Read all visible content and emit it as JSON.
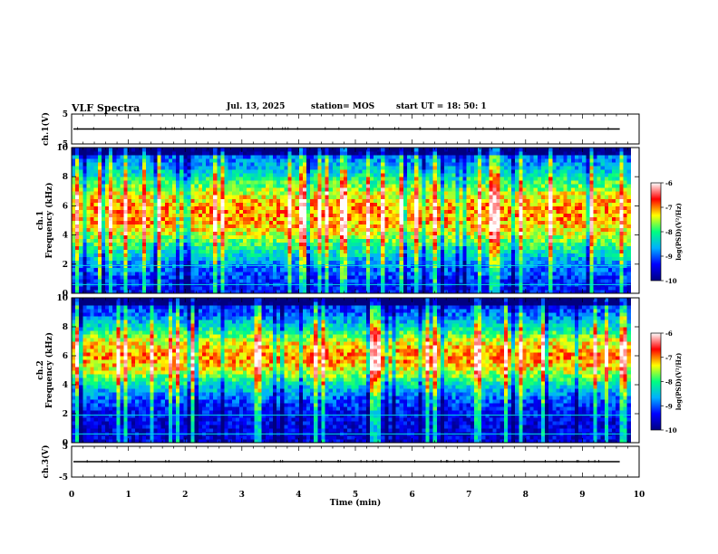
{
  "header": {
    "title": "VLF Spectra",
    "date": "Jul. 13, 2025",
    "station": "station= MOS",
    "start_ut": "start UT =  18: 50: 1"
  },
  "chart_data": {
    "type": "heatmap",
    "title": "VLF Spectra",
    "xlabel": "Time (min)",
    "x_ticks": [
      "0",
      "1",
      "2",
      "3",
      "4",
      "5",
      "6",
      "7",
      "8",
      "9",
      "10"
    ],
    "xlim": [
      0,
      10
    ],
    "data_end_min": 9.85,
    "panels": [
      {
        "name": "ch1-waveform",
        "ylabel": "ch.1(V)",
        "ylim": [
          -5,
          5
        ],
        "y_ticks": [
          "5",
          "-5"
        ],
        "level": 0
      },
      {
        "name": "ch1-spectrogram",
        "ylabel_top": "ch.1",
        "ylabel": "Frequency (kHz)",
        "ylim": [
          0,
          10
        ],
        "y_ticks": [
          "0",
          "2",
          "4",
          "6",
          "8",
          "10"
        ],
        "band_center_khz": 5.5,
        "band_width_khz": 3.2,
        "seed": 11
      },
      {
        "name": "ch2-spectrogram",
        "ylabel_top": "ch.2",
        "ylabel": "Frequency (kHz)",
        "ylim": [
          0,
          10
        ],
        "y_ticks": [
          "0",
          "2",
          "4",
          "6",
          "8",
          "10"
        ],
        "band_center_khz": 6.0,
        "band_width_khz": 2.4,
        "seed": 29
      },
      {
        "name": "ch3-waveform",
        "ylabel": "ch.3(V)",
        "ylim": [
          -5,
          5
        ],
        "y_ticks": [
          "5",
          "-5"
        ],
        "level": 0
      }
    ],
    "colorbar": {
      "label": "log(PSD)(V²/Hz)",
      "range": [
        -10,
        -6
      ],
      "ticks": [
        "-6",
        "-7",
        "-8",
        "-9",
        "-10"
      ],
      "colors": [
        "#000080",
        "#0000ff",
        "#00b0ff",
        "#00ff80",
        "#ffff00",
        "#ff0000",
        "#ffffff"
      ]
    }
  }
}
